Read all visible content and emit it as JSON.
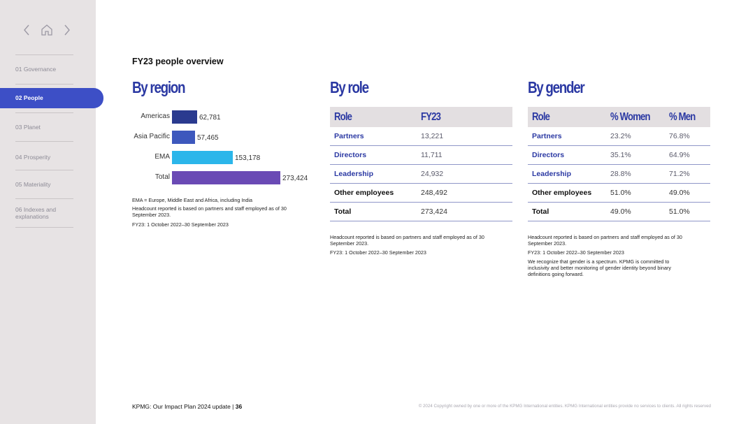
{
  "sidebar": {
    "items": [
      {
        "label": "01  Governance"
      },
      {
        "label": "02  People",
        "active": true
      },
      {
        "label": "03  Planet"
      },
      {
        "label": "04  Prosperity"
      },
      {
        "label": "05  Materiality"
      },
      {
        "label": "06  Indexes and explanations"
      }
    ],
    "nav_icons": [
      "chevron-left-icon",
      "home-icon",
      "chevron-right-icon"
    ]
  },
  "page": {
    "heading": "FY23 people overview"
  },
  "region": {
    "title": "By region",
    "notes": [
      "EMA = Europe, Middle East and Africa, including India",
      "Headcount reported is based on partners and staff employed as of 30 September 2023.",
      "FY23: 1 October 2022–30 September 2023"
    ]
  },
  "chart_data": {
    "type": "bar",
    "orientation": "horizontal",
    "categories": [
      "Americas",
      "Asia Pacific",
      "EMA",
      "Total"
    ],
    "values": [
      62781,
      57465,
      153178,
      273424
    ],
    "value_labels": [
      "62,781",
      "57,465",
      "153,178",
      "273,424"
    ],
    "colors": [
      "#2a3a8f",
      "#3d58bd",
      "#2bb6ea",
      "#6a4ab5"
    ],
    "title": "",
    "xlabel": "",
    "ylabel": ""
  },
  "role": {
    "title": "By role",
    "headers": [
      "Role",
      "FY23"
    ],
    "rows": [
      [
        "Partners",
        "13,221"
      ],
      [
        "Directors",
        "11,711"
      ],
      [
        "Leadership",
        "24,932"
      ],
      [
        "Other employees",
        "248,492"
      ],
      [
        "Total",
        "273,424"
      ]
    ],
    "notes": [
      "Headcount reported  is based on partners and staff employed as of 30 September 2023.",
      "FY23: 1 October 2022–30 September 2023"
    ]
  },
  "gender": {
    "title": "By gender",
    "headers": [
      "Role",
      "% Women",
      "% Men"
    ],
    "rows": [
      [
        "Partners",
        "23.2%",
        "76.8%"
      ],
      [
        "Directors",
        "35.1%",
        "64.9%"
      ],
      [
        "Leadership",
        "28.8%",
        "71.2%"
      ],
      [
        "Other employees",
        "51.0%",
        "49.0%"
      ],
      [
        "Total",
        "49.0%",
        "51.0%"
      ]
    ],
    "notes": [
      "Headcount reported is based on partners and staff employed as of 30 September 2023.",
      "FY23: 1 October 2022–30 September 2023",
      "We recognize that gender is a spectrum. KPMG is committed to inclusivity and better monitoring of gender identity beyond binary definitions going forward."
    ]
  },
  "footer": {
    "doc_title": "KPMG: Our Impact Plan 2024 update",
    "separator": " | ",
    "page_number": "36",
    "copyright": "© 2024 Copyright owned by one or more of the KPMG International entities. KPMG International entities provide no services to clients. All rights reserved"
  }
}
